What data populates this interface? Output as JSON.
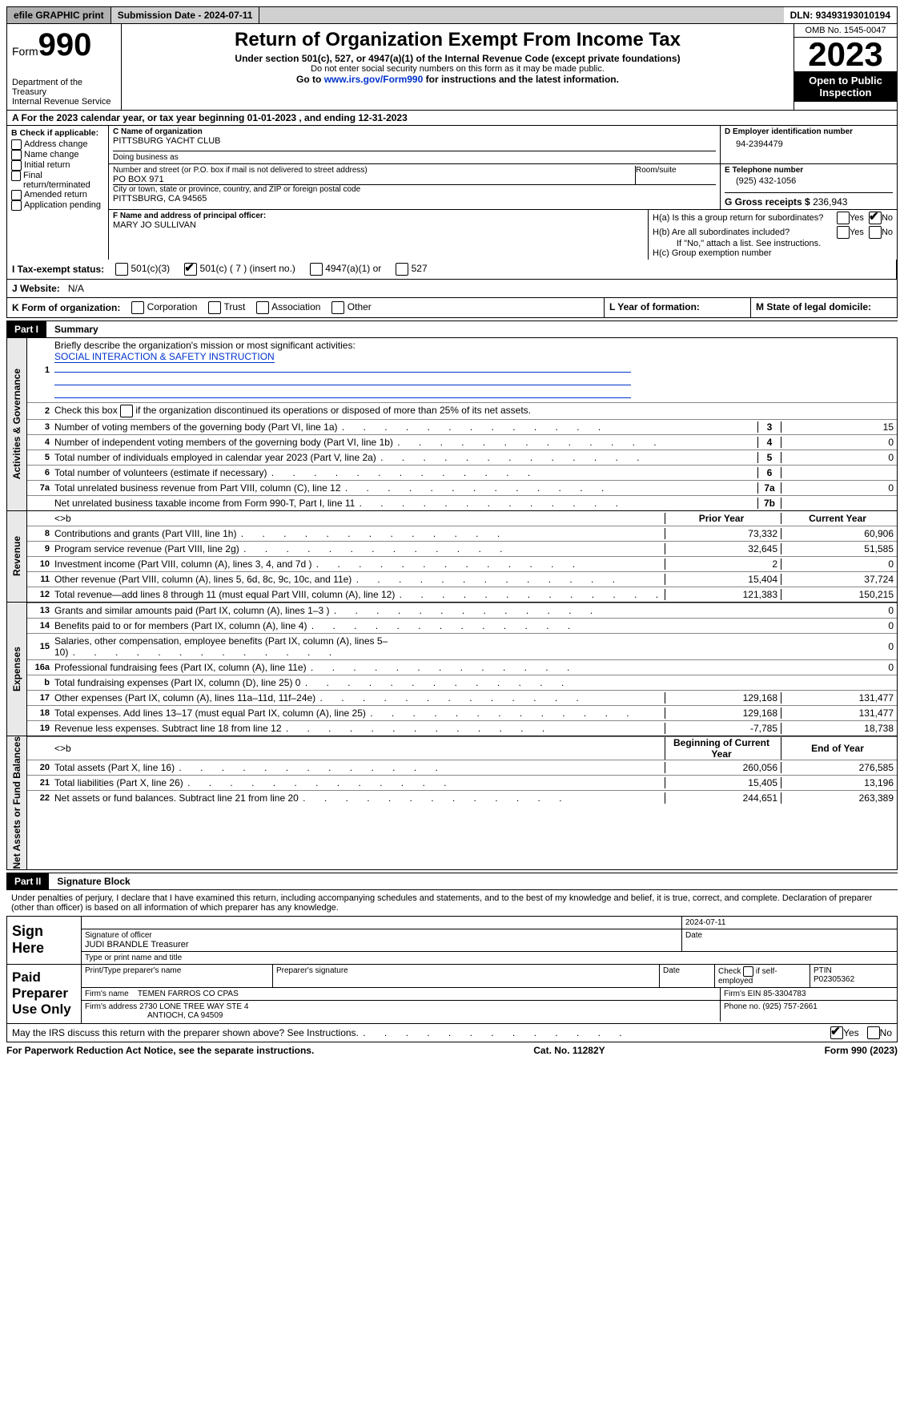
{
  "topbar": {
    "efile": "efile GRAPHIC print",
    "submission_label": "Submission Date - ",
    "submission_date": "2024-07-11",
    "dln_label": "DLN: ",
    "dln": "93493193010194"
  },
  "header": {
    "form_word": "Form",
    "form_num": "990",
    "dept": "Department of the Treasury\nInternal Revenue Service",
    "title": "Return of Organization Exempt From Income Tax",
    "subtitle": "Under section 501(c), 527, or 4947(a)(1) of the Internal Revenue Code (except private foundations)",
    "ssn_note": "Do not enter social security numbers on this form as it may be made public.",
    "goto_pre": "Go to ",
    "goto_link": "www.irs.gov/Form990",
    "goto_post": " for instructions and the latest information.",
    "omb": "OMB No. 1545-0047",
    "year": "2023",
    "inspect": "Open to Public Inspection"
  },
  "row_a": "A For the 2023 calendar year, or tax year beginning 01-01-2023    , and ending 12-31-2023",
  "col_b": {
    "header": "B Check if applicable:",
    "items": [
      "Address change",
      "Name change",
      "Initial return",
      "Final return/terminated",
      "Amended return",
      "Application pending"
    ]
  },
  "col_c": {
    "name_label": "C Name of organization",
    "name": "PITTSBURG YACHT CLUB",
    "dba_label": "Doing business as",
    "dba": "",
    "street_label": "Number and street (or P.O. box if mail is not delivered to street address)",
    "street": "PO BOX 971",
    "room_label": "Room/suite",
    "room": "",
    "city_label": "City or town, state or province, country, and ZIP or foreign postal code",
    "city": "PITTSBURG, CA  94565",
    "officer_label": "F  Name and address of principal officer:",
    "officer": "MARY JO SULLIVAN"
  },
  "col_right": {
    "ein_label": "D Employer identification number",
    "ein": "94-2394479",
    "phone_label": "E Telephone number",
    "phone": "(925) 432-1056",
    "receipts_label": "G Gross receipts $ ",
    "receipts": "236,943",
    "h_a": "H(a)  Is this a group return for subordinates?",
    "h_b": "H(b)  Are all subordinates included?",
    "h_b_note": "If \"No,\" attach a list. See instructions.",
    "h_c": "H(c)  Group exemption number",
    "yes": "Yes",
    "no": "No"
  },
  "row_i": {
    "label": "I  Tax-exempt status:",
    "opts": [
      "501(c)(3)",
      "501(c) ( 7 ) (insert no.)",
      "4947(a)(1) or",
      "527"
    ],
    "checked_idx": 1
  },
  "row_j": {
    "label": "J  Website:",
    "val": "N/A"
  },
  "row_k": {
    "label": "K Form of organization:",
    "opts": [
      "Corporation",
      "Trust",
      "Association",
      "Other"
    ],
    "l": "L Year of formation:",
    "m": "M State of legal domicile:"
  },
  "part1": {
    "tag": "Part I",
    "title": "Summary",
    "mission_label": "Briefly describe the organization's mission or most significant activities:",
    "mission": "SOCIAL INTERACTION & SAFETY INSTRUCTION",
    "line2": "Check this box      if the organization discontinued its operations or disposed of more than 25% of its net assets.",
    "sections": [
      {
        "label": "Activities & Governance",
        "rows": [
          {
            "n": "3",
            "d": "Number of voting members of the governing body (Part VI, line 1a)",
            "ln": "3",
            "v1": null,
            "v2": "15",
            "single": true
          },
          {
            "n": "4",
            "d": "Number of independent voting members of the governing body (Part VI, line 1b)",
            "ln": "4",
            "v1": null,
            "v2": "0",
            "single": true
          },
          {
            "n": "5",
            "d": "Total number of individuals employed in calendar year 2023 (Part V, line 2a)",
            "ln": "5",
            "v1": null,
            "v2": "0",
            "single": true
          },
          {
            "n": "6",
            "d": "Total number of volunteers (estimate if necessary)",
            "ln": "6",
            "v1": null,
            "v2": "",
            "single": true
          },
          {
            "n": "7a",
            "d": "Total unrelated business revenue from Part VIII, column (C), line 12",
            "ln": "7a",
            "v1": null,
            "v2": "0",
            "single": true
          },
          {
            "n": "",
            "d": "Net unrelated business taxable income from Form 990-T, Part I, line 11",
            "ln": "7b",
            "v1": null,
            "v2": "",
            "single": true
          }
        ]
      },
      {
        "label": "Revenue",
        "header": [
          "Prior Year",
          "Current Year"
        ],
        "rows": [
          {
            "n": "8",
            "d": "Contributions and grants (Part VIII, line 1h)",
            "v1": "73,332",
            "v2": "60,906"
          },
          {
            "n": "9",
            "d": "Program service revenue (Part VIII, line 2g)",
            "v1": "32,645",
            "v2": "51,585"
          },
          {
            "n": "10",
            "d": "Investment income (Part VIII, column (A), lines 3, 4, and 7d )",
            "v1": "2",
            "v2": "0"
          },
          {
            "n": "11",
            "d": "Other revenue (Part VIII, column (A), lines 5, 6d, 8c, 9c, 10c, and 11e)",
            "v1": "15,404",
            "v2": "37,724"
          },
          {
            "n": "12",
            "d": "Total revenue—add lines 8 through 11 (must equal Part VIII, column (A), line 12)",
            "v1": "121,383",
            "v2": "150,215"
          }
        ]
      },
      {
        "label": "Expenses",
        "rows": [
          {
            "n": "13",
            "d": "Grants and similar amounts paid (Part IX, column (A), lines 1–3 )",
            "v1": "",
            "v2": "0"
          },
          {
            "n": "14",
            "d": "Benefits paid to or for members (Part IX, column (A), line 4)",
            "v1": "",
            "v2": "0"
          },
          {
            "n": "15",
            "d": "Salaries, other compensation, employee benefits (Part IX, column (A), lines 5–10)",
            "v1": "",
            "v2": "0"
          },
          {
            "n": "16a",
            "d": "Professional fundraising fees (Part IX, column (A), line 11e)",
            "v1": "",
            "v2": "0"
          },
          {
            "n": "b",
            "d": "Total fundraising expenses (Part IX, column (D), line 25) 0",
            "v1": null,
            "v2": null,
            "shade": true,
            "noln": true
          },
          {
            "n": "17",
            "d": "Other expenses (Part IX, column (A), lines 11a–11d, 11f–24e)",
            "v1": "129,168",
            "v2": "131,477"
          },
          {
            "n": "18",
            "d": "Total expenses. Add lines 13–17 (must equal Part IX, column (A), line 25)",
            "v1": "129,168",
            "v2": "131,477"
          },
          {
            "n": "19",
            "d": "Revenue less expenses. Subtract line 18 from line 12",
            "v1": "-7,785",
            "v2": "18,738"
          }
        ]
      },
      {
        "label": "Net Assets or Fund Balances",
        "header": [
          "Beginning of Current Year",
          "End of Year"
        ],
        "rows": [
          {
            "n": "20",
            "d": "Total assets (Part X, line 16)",
            "v1": "260,056",
            "v2": "276,585"
          },
          {
            "n": "21",
            "d": "Total liabilities (Part X, line 26)",
            "v1": "15,405",
            "v2": "13,196"
          },
          {
            "n": "22",
            "d": "Net assets or fund balances. Subtract line 21 from line 20",
            "v1": "244,651",
            "v2": "263,389"
          }
        ]
      }
    ]
  },
  "part2": {
    "tag": "Part II",
    "title": "Signature Block",
    "decl": "Under penalties of perjury, I declare that I have examined this return, including accompanying schedules and statements, and to the best of my knowledge and belief, it is true, correct, and complete. Declaration of preparer (other than officer) is based on all information of which preparer has any knowledge.",
    "sign_here": "Sign Here",
    "sig_officer_label": "Signature of officer",
    "sig_date_label": "Date",
    "sig_date": "2024-07-11",
    "officer_name": "JUDI BRANDLE  Treasurer",
    "type_label": "Type or print name and title",
    "paid": "Paid Preparer Use Only",
    "prep_name_label": "Print/Type preparer's name",
    "prep_sig_label": "Preparer's signature",
    "date_label": "Date",
    "self_emp": "Check         if self-employed",
    "ptin_label": "PTIN",
    "ptin": "P02305362",
    "firm_name_label": "Firm's name",
    "firm_name": "TEMEN FARROS CO CPAS",
    "firm_ein_label": "Firm's EIN",
    "firm_ein": "85-3304783",
    "firm_addr_label": "Firm's address",
    "firm_addr1": "2730 LONE TREE WAY STE 4",
    "firm_addr2": "ANTIOCH, CA  94509",
    "firm_phone_label": "Phone no.",
    "firm_phone": "(925) 757-2661",
    "discuss": "May the IRS discuss this return with the preparer shown above? See Instructions.",
    "yes": "Yes",
    "no": "No"
  },
  "footer": {
    "left": "For Paperwork Reduction Act Notice, see the separate instructions.",
    "mid": "Cat. No. 11282Y",
    "right_a": "Form ",
    "right_b": "990",
    "right_c": " (2023)"
  }
}
